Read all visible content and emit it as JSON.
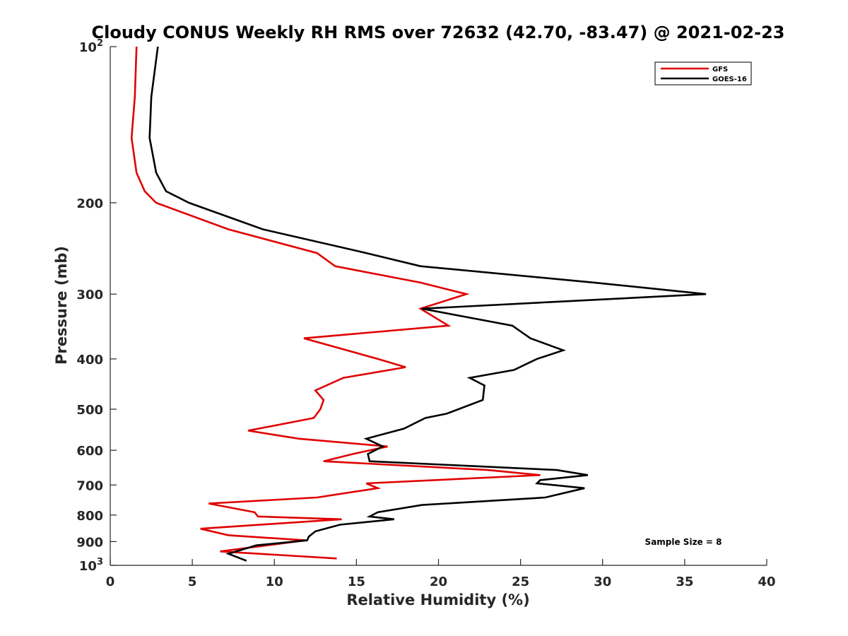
{
  "chart_data": {
    "type": "line",
    "title": "Cloudy CONUS Weekly RH RMS over 72632 (42.70, -83.47) @ 2021-02-23",
    "xlabel": "Relative Humidity (%)",
    "ylabel": "Pressure (mb)",
    "xlim": [
      0,
      40
    ],
    "ylim": [
      100,
      1000
    ],
    "yscale": "log",
    "y_reversed": true,
    "grid": false,
    "legend_position": "top-right",
    "x_ticks": [
      0,
      5,
      10,
      15,
      20,
      25,
      30,
      35,
      40
    ],
    "x_tick_labels": [
      "0",
      "5",
      "10",
      "15",
      "20",
      "25",
      "30",
      "35",
      "40"
    ],
    "y_ticks": [
      100,
      200,
      300,
      400,
      500,
      600,
      700,
      800,
      900,
      1000
    ],
    "y_tick_labels": [
      {
        "base": "10",
        "exp": "2"
      },
      {
        "base": "200",
        "exp": ""
      },
      {
        "base": "300",
        "exp": ""
      },
      {
        "base": "400",
        "exp": ""
      },
      {
        "base": "500",
        "exp": ""
      },
      {
        "base": "600",
        "exp": ""
      },
      {
        "base": "700",
        "exp": ""
      },
      {
        "base": "800",
        "exp": ""
      },
      {
        "base": "900",
        "exp": ""
      },
      {
        "base": "10",
        "exp": "3"
      }
    ],
    "annotation": "Sample Size = 8",
    "series": [
      {
        "name": "GFS",
        "color": "#e00000",
        "points": [
          [
            1.6,
            100
          ],
          [
            1.5,
            125
          ],
          [
            1.3,
            150
          ],
          [
            1.6,
            175
          ],
          [
            2.1,
            190
          ],
          [
            2.8,
            200
          ],
          [
            7.2,
            225
          ],
          [
            12.6,
            250
          ],
          [
            13.7,
            265
          ],
          [
            18.9,
            285
          ],
          [
            21.7,
            300
          ],
          [
            18.9,
            320
          ],
          [
            20.6,
            345
          ],
          [
            11.8,
            365
          ],
          [
            16.3,
            400
          ],
          [
            18.0,
            415
          ],
          [
            14.2,
            435
          ],
          [
            12.5,
            460
          ],
          [
            13.0,
            480
          ],
          [
            12.8,
            500
          ],
          [
            12.4,
            520
          ],
          [
            8.4,
            550
          ],
          [
            11.5,
            570
          ],
          [
            16.9,
            590
          ],
          [
            14.8,
            610
          ],
          [
            13.0,
            630
          ],
          [
            23.0,
            655
          ],
          [
            26.2,
            670
          ],
          [
            15.6,
            695
          ],
          [
            16.3,
            710
          ],
          [
            12.6,
            740
          ],
          [
            6.0,
            760
          ],
          [
            8.8,
            790
          ],
          [
            9.0,
            805
          ],
          [
            14.1,
            815
          ],
          [
            5.5,
            850
          ],
          [
            7.2,
            875
          ],
          [
            11.9,
            895
          ],
          [
            6.7,
            940
          ],
          [
            13.8,
            970
          ]
        ]
      },
      {
        "name": "GOES-16",
        "color": "#000000",
        "points": [
          [
            2.9,
            100
          ],
          [
            2.5,
            125
          ],
          [
            2.4,
            150
          ],
          [
            2.8,
            175
          ],
          [
            3.4,
            190
          ],
          [
            4.8,
            200
          ],
          [
            9.3,
            225
          ],
          [
            15.6,
            250
          ],
          [
            18.9,
            265
          ],
          [
            29.5,
            285
          ],
          [
            36.3,
            300
          ],
          [
            19.0,
            320
          ],
          [
            24.5,
            345
          ],
          [
            25.6,
            365
          ],
          [
            27.6,
            385
          ],
          [
            26.0,
            400
          ],
          [
            24.6,
            420
          ],
          [
            21.9,
            435
          ],
          [
            22.8,
            450
          ],
          [
            22.7,
            480
          ],
          [
            20.5,
            510
          ],
          [
            19.2,
            520
          ],
          [
            17.9,
            545
          ],
          [
            15.6,
            570
          ],
          [
            16.6,
            590
          ],
          [
            15.7,
            610
          ],
          [
            15.8,
            630
          ],
          [
            27.2,
            655
          ],
          [
            29.1,
            670
          ],
          [
            26.2,
            685
          ],
          [
            26.0,
            695
          ],
          [
            28.9,
            710
          ],
          [
            26.5,
            740
          ],
          [
            19.0,
            765
          ],
          [
            16.3,
            790
          ],
          [
            15.8,
            805
          ],
          [
            17.3,
            815
          ],
          [
            14.0,
            835
          ],
          [
            12.5,
            860
          ],
          [
            12.1,
            880
          ],
          [
            12.0,
            895
          ],
          [
            8.9,
            915
          ],
          [
            7.2,
            950
          ],
          [
            8.3,
            980
          ]
        ]
      }
    ]
  }
}
